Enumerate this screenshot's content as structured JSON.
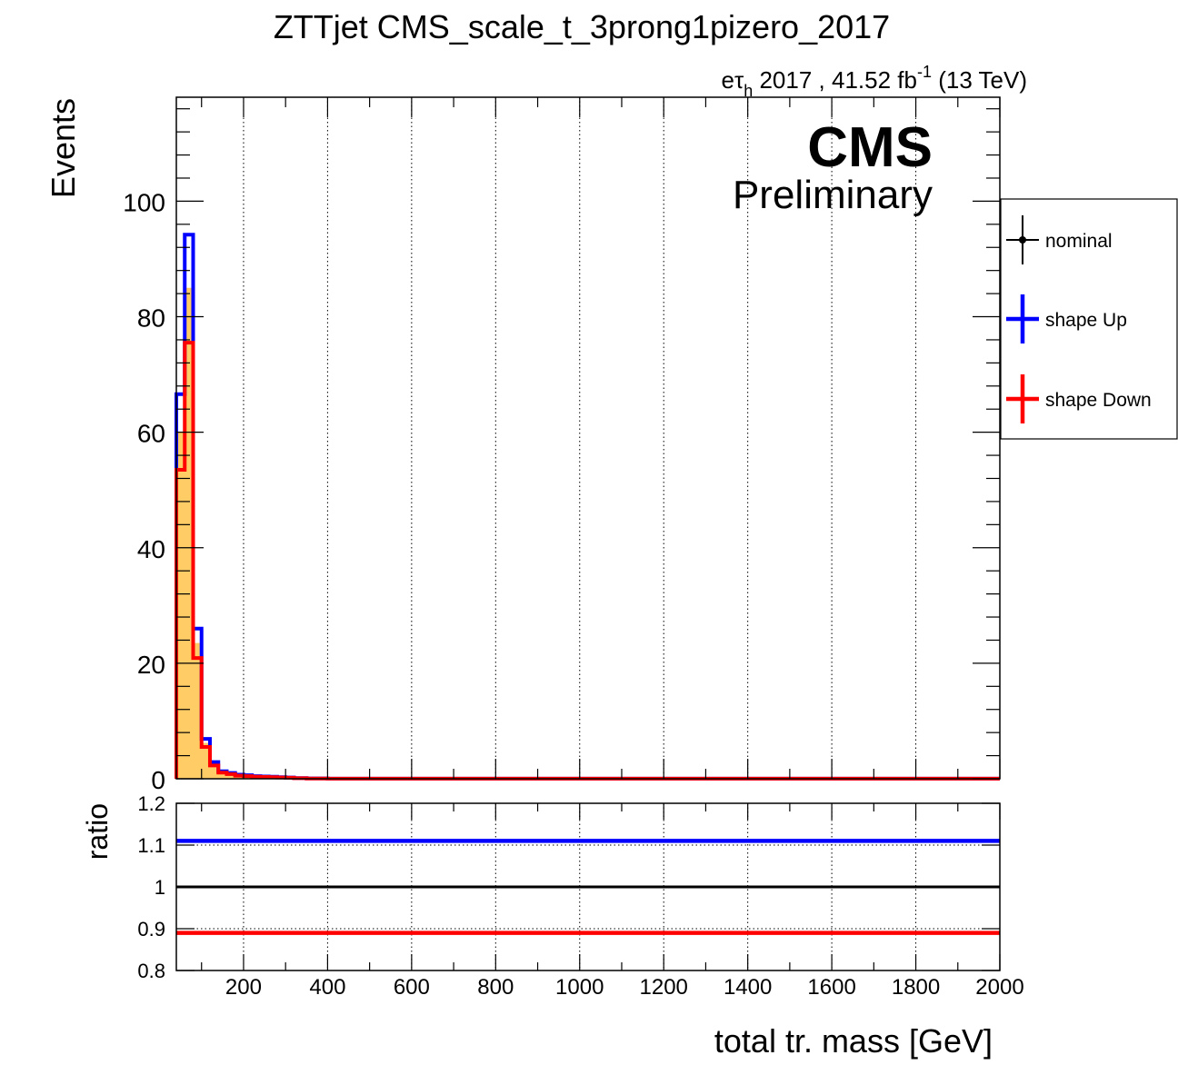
{
  "chart_data": [
    {
      "type": "line",
      "panel": "main",
      "title": "ZTTjet CMS_scale_t_3prong1pizero_2017",
      "lumi_label": {
        "base": "e",
        "tau": "τ",
        "sub": "h",
        "rest": " 2017 , 41.52 fb",
        "sup": "-1",
        "energy": " (13 TeV)"
      },
      "cms_label": "CMS",
      "preliminary_label": "Preliminary",
      "xlabel": "total tr. mass [GeV]",
      "ylabel": "Events",
      "xlim": [
        40,
        2000
      ],
      "ylim": [
        0,
        118
      ],
      "x_ticks": [
        200,
        400,
        600,
        800,
        1000,
        1200,
        1400,
        1600,
        1800,
        2000
      ],
      "y_ticks": [
        0,
        20,
        40,
        60,
        80,
        100
      ],
      "grid_x": true,
      "grid_y": false,
      "legend_position": "right-outside",
      "bin_edges": [
        40,
        60,
        80,
        100,
        120,
        140,
        160,
        180,
        200,
        220,
        240,
        260,
        280,
        300,
        320,
        350,
        400,
        2000
      ],
      "series": [
        {
          "name": "nominal",
          "style": "filled",
          "fill": "#ffcc66",
          "values": [
            60,
            85,
            23.5,
            6.2,
            2.6,
            1.2,
            0.9,
            0.6,
            0.5,
            0.4,
            0.35,
            0.3,
            0.25,
            0.2,
            0.1,
            0.05,
            0.02
          ]
        },
        {
          "name": "shape Up",
          "color": "#0000ff",
          "values": [
            66.6,
            94.2,
            26,
            6.9,
            2.9,
            1.3,
            1.0,
            0.7,
            0.6,
            0.45,
            0.4,
            0.35,
            0.28,
            0.22,
            0.11,
            0.06,
            0.02
          ]
        },
        {
          "name": "shape Down",
          "color": "#ff0000",
          "values": [
            53.5,
            75.5,
            20.9,
            5.5,
            2.3,
            1.07,
            0.8,
            0.53,
            0.45,
            0.36,
            0.31,
            0.27,
            0.22,
            0.18,
            0.09,
            0.04,
            0.02
          ]
        }
      ]
    },
    {
      "type": "line",
      "panel": "ratio",
      "ylabel": "ratio",
      "xlim": [
        40,
        2000
      ],
      "ylim": [
        0.8,
        1.2
      ],
      "x_ticks": [
        200,
        400,
        600,
        800,
        1000,
        1200,
        1400,
        1600,
        1800,
        2000
      ],
      "y_ticks": [
        0.8,
        0.9,
        1,
        1.1,
        1.2
      ],
      "y_tick_labels": [
        "0.8",
        "0.9",
        "1",
        "1.1",
        "1.2"
      ],
      "series": [
        {
          "name": "shape Up",
          "color": "#0000ff",
          "value": 1.11
        },
        {
          "name": "nominal",
          "color": "#000000",
          "value": 1.0
        },
        {
          "name": "shape Down",
          "color": "#ff0000",
          "value": 0.89
        }
      ]
    }
  ],
  "legend": {
    "items": [
      {
        "label": "nominal",
        "color": "#000000",
        "marker": true
      },
      {
        "label": "shape Up",
        "color": "#0000ff",
        "marker": false
      },
      {
        "label": "shape Down",
        "color": "#ff0000",
        "marker": false
      }
    ]
  }
}
